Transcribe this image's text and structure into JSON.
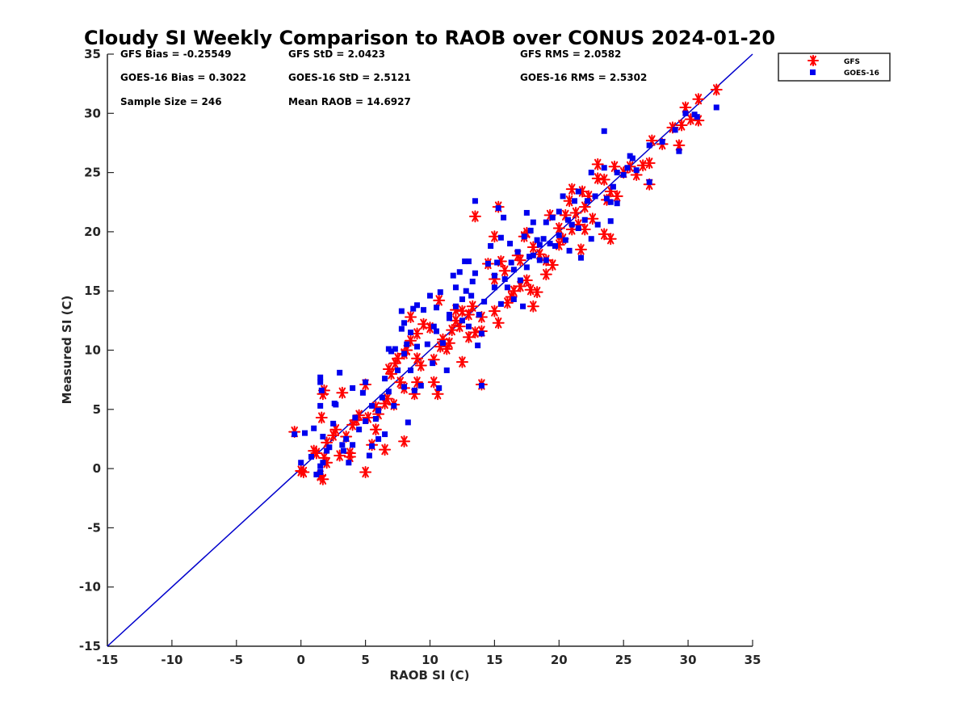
{
  "chart_data": {
    "type": "scatter",
    "title": "Cloudy SI Weekly Comparison to RAOB over CONUS 2024-01-20",
    "xlabel": "RAOB SI (C)",
    "ylabel": "Measured SI (C)",
    "xlim": [
      -15,
      35
    ],
    "ylim": [
      -15,
      35
    ],
    "xticks": [
      -15,
      -10,
      -5,
      0,
      5,
      10,
      15,
      20,
      25,
      30,
      35
    ],
    "yticks": [
      -15,
      -10,
      -5,
      0,
      5,
      10,
      15,
      20,
      25,
      30,
      35
    ],
    "grid": false,
    "legend_position": "outside-top-right",
    "reference_line": {
      "x": [
        -15,
        35
      ],
      "y": [
        -15,
        35
      ],
      "color": "#0000cc"
    },
    "stats": [
      "GFS Bias = -0.25549",
      "GFS StD = 2.0423",
      "GFS RMS = 2.0582",
      "GOES-16 Bias = 0.3022",
      "GOES-16 StD = 2.5121",
      "GOES-16 RMS = 2.5302",
      "Sample Size = 246",
      "Mean RAOB = 14.6927"
    ],
    "series": [
      {
        "name": "GFS",
        "marker": "asterisk",
        "color": "#ff0000",
        "points": [
          [
            -0.5,
            3.1
          ],
          [
            0,
            -0.2
          ],
          [
            0.2,
            -0.3
          ],
          [
            1,
            1.5
          ],
          [
            1.2,
            1.3
          ],
          [
            1.5,
            -0.6
          ],
          [
            1.7,
            -0.9
          ],
          [
            1.7,
            6.3
          ],
          [
            1.8,
            6.6
          ],
          [
            1.6,
            4.3
          ],
          [
            2,
            2.2
          ],
          [
            1.8,
            0.9
          ],
          [
            2,
            0.5
          ],
          [
            2.5,
            2.8
          ],
          [
            2.7,
            3.3
          ],
          [
            3,
            1.1
          ],
          [
            3.2,
            6.4
          ],
          [
            3.5,
            2.7
          ],
          [
            3.8,
            1.3
          ],
          [
            3.8,
            1.0
          ],
          [
            4,
            3.7
          ],
          [
            4.3,
            4.1
          ],
          [
            4.5,
            4.5
          ],
          [
            5,
            7.1
          ],
          [
            5,
            -0.3
          ],
          [
            5.2,
            4.3
          ],
          [
            5.5,
            2.0
          ],
          [
            5.8,
            5.2
          ],
          [
            5.8,
            3.3
          ],
          [
            6,
            4.6
          ],
          [
            6.5,
            1.6
          ],
          [
            6.5,
            5.5
          ],
          [
            6.7,
            5.9
          ],
          [
            6.8,
            8.4
          ],
          [
            7,
            8.0
          ],
          [
            7.2,
            5.4
          ],
          [
            7.3,
            8.9
          ],
          [
            7.5,
            9.3
          ],
          [
            7.7,
            7.3
          ],
          [
            8,
            9.7
          ],
          [
            8,
            6.8
          ],
          [
            8.2,
            10.0
          ],
          [
            8.5,
            10.8
          ],
          [
            8,
            2.3
          ],
          [
            8.5,
            12.8
          ],
          [
            8.8,
            6.3
          ],
          [
            9,
            7.3
          ],
          [
            9,
            9.3
          ],
          [
            9,
            11.4
          ],
          [
            9.3,
            8.7
          ],
          [
            9.5,
            12.2
          ],
          [
            10,
            11.9
          ],
          [
            10.3,
            7.3
          ],
          [
            10.3,
            9.2
          ],
          [
            10.6,
            6.3
          ],
          [
            10.7,
            14.2
          ],
          [
            10.8,
            10.3
          ],
          [
            11,
            10.9
          ],
          [
            11.3,
            10.1
          ],
          [
            11.5,
            10.6
          ],
          [
            11.7,
            11.7
          ],
          [
            12,
            12.5
          ],
          [
            12,
            13.4
          ],
          [
            12.3,
            12.0
          ],
          [
            12.5,
            13.3
          ],
          [
            12.5,
            9.0
          ],
          [
            13,
            11.1
          ],
          [
            13,
            13.0
          ],
          [
            13.3,
            13.7
          ],
          [
            13.5,
            11.5
          ],
          [
            13.5,
            21.3
          ],
          [
            14,
            11.6
          ],
          [
            14,
            7.1
          ],
          [
            14,
            12.8
          ],
          [
            14.5,
            17.3
          ],
          [
            15,
            13.3
          ],
          [
            15,
            16.0
          ],
          [
            15,
            19.6
          ],
          [
            15.3,
            22.1
          ],
          [
            15.3,
            12.3
          ],
          [
            15.5,
            17.5
          ],
          [
            15.8,
            16.7
          ],
          [
            16,
            14.0
          ],
          [
            16.3,
            14.5
          ],
          [
            16.5,
            15.0
          ],
          [
            16.8,
            18.0
          ],
          [
            17,
            17.6
          ],
          [
            17,
            15.4
          ],
          [
            17.3,
            19.6
          ],
          [
            17.5,
            19.9
          ],
          [
            17.5,
            15.9
          ],
          [
            17.8,
            15.1
          ],
          [
            18,
            18.7
          ],
          [
            18,
            13.7
          ],
          [
            18.3,
            14.9
          ],
          [
            18.5,
            18.1
          ],
          [
            19,
            17.6
          ],
          [
            19,
            16.4
          ],
          [
            19.3,
            21.4
          ],
          [
            19.5,
            17.2
          ],
          [
            20,
            20.3
          ],
          [
            20,
            18.9
          ],
          [
            20.3,
            19.4
          ],
          [
            20.5,
            21.4
          ],
          [
            20.8,
            22.6
          ],
          [
            21,
            20.2
          ],
          [
            21,
            23.6
          ],
          [
            21.3,
            21.6
          ],
          [
            21.5,
            20.6
          ],
          [
            21.7,
            18.5
          ],
          [
            21.8,
            23.4
          ],
          [
            22,
            20.2
          ],
          [
            22,
            22.1
          ],
          [
            22.3,
            23.0
          ],
          [
            22.6,
            21.1
          ],
          [
            23,
            25.7
          ],
          [
            23,
            24.5
          ],
          [
            23.5,
            24.4
          ],
          [
            23.5,
            19.8
          ],
          [
            23.7,
            22.7
          ],
          [
            24,
            19.4
          ],
          [
            24,
            23.4
          ],
          [
            24.3,
            25.5
          ],
          [
            24.5,
            23.0
          ],
          [
            25,
            25.0
          ],
          [
            25.5,
            25.5
          ],
          [
            26,
            24.8
          ],
          [
            26.5,
            25.6
          ],
          [
            27,
            25.8
          ],
          [
            27,
            24.0
          ],
          [
            27.2,
            27.7
          ],
          [
            28,
            27.4
          ],
          [
            28.8,
            28.8
          ],
          [
            29.3,
            27.3
          ],
          [
            29.5,
            29.0
          ],
          [
            29.8,
            30.5
          ],
          [
            30.2,
            29.5
          ],
          [
            30.8,
            29.4
          ],
          [
            30.8,
            31.2
          ],
          [
            32.2,
            32.0
          ]
        ]
      },
      {
        "name": "GOES-16",
        "marker": "square",
        "color": "#0000ee",
        "points": [
          [
            -0.5,
            2.9
          ],
          [
            0,
            0.5
          ],
          [
            0.3,
            3.0
          ],
          [
            0.8,
            1.0
          ],
          [
            1,
            3.4
          ],
          [
            1.2,
            -0.5
          ],
          [
            1.5,
            -0.3
          ],
          [
            1.5,
            0.2
          ],
          [
            1.7,
            0.5
          ],
          [
            1.5,
            7.3
          ],
          [
            1.5,
            7.7
          ],
          [
            1.6,
            6.6
          ],
          [
            1.7,
            2.7
          ],
          [
            1.5,
            5.3
          ],
          [
            2,
            1.5
          ],
          [
            2.2,
            1.8
          ],
          [
            2.5,
            3.8
          ],
          [
            2.6,
            5.5
          ],
          [
            2.7,
            5.4
          ],
          [
            3,
            8.1
          ],
          [
            3.2,
            2.0
          ],
          [
            3.3,
            1.5
          ],
          [
            3.5,
            2.5
          ],
          [
            3.7,
            0.5
          ],
          [
            4,
            2.0
          ],
          [
            4,
            6.8
          ],
          [
            4.2,
            4.3
          ],
          [
            4.5,
            3.3
          ],
          [
            4.8,
            6.4
          ],
          [
            5,
            4.0
          ],
          [
            5,
            7.3
          ],
          [
            5.3,
            1.1
          ],
          [
            5.5,
            1.9
          ],
          [
            5.5,
            5.3
          ],
          [
            5.8,
            4.2
          ],
          [
            6,
            4.9
          ],
          [
            6,
            2.5
          ],
          [
            6.3,
            6.0
          ],
          [
            6.5,
            7.6
          ],
          [
            6.5,
            2.9
          ],
          [
            6.8,
            6.5
          ],
          [
            6.8,
            10.1
          ],
          [
            7,
            9.9
          ],
          [
            7.2,
            5.3
          ],
          [
            7.3,
            10.1
          ],
          [
            7.5,
            8.3
          ],
          [
            7.8,
            11.8
          ],
          [
            7.8,
            13.3
          ],
          [
            8,
            9.7
          ],
          [
            8,
            6.9
          ],
          [
            8,
            12.3
          ],
          [
            8.2,
            10.5
          ],
          [
            8.3,
            3.9
          ],
          [
            8.5,
            8.3
          ],
          [
            8.5,
            11.5
          ],
          [
            8.7,
            13.5
          ],
          [
            8.8,
            6.6
          ],
          [
            9,
            10.3
          ],
          [
            9,
            13.8
          ],
          [
            9.3,
            7.0
          ],
          [
            9.5,
            13.4
          ],
          [
            9.8,
            10.5
          ],
          [
            10,
            14.6
          ],
          [
            10.2,
            8.9
          ],
          [
            10.3,
            12.0
          ],
          [
            10.5,
            11.6
          ],
          [
            10.5,
            13.6
          ],
          [
            10.7,
            6.8
          ],
          [
            10.8,
            14.9
          ],
          [
            11,
            10.6
          ],
          [
            11.3,
            8.3
          ],
          [
            11.5,
            12.7
          ],
          [
            11.5,
            13.0
          ],
          [
            11.8,
            16.3
          ],
          [
            12,
            13.7
          ],
          [
            12,
            15.3
          ],
          [
            12.3,
            16.6
          ],
          [
            12.5,
            14.3
          ],
          [
            12.5,
            12.5
          ],
          [
            12.7,
            17.5
          ],
          [
            12.8,
            15.0
          ],
          [
            13,
            17.5
          ],
          [
            13,
            12.0
          ],
          [
            13.2,
            14.6
          ],
          [
            13.3,
            15.8
          ],
          [
            13.5,
            16.5
          ],
          [
            13.5,
            22.6
          ],
          [
            13.7,
            10.4
          ],
          [
            13.8,
            13.0
          ],
          [
            14,
            11.4
          ],
          [
            14,
            7.0
          ],
          [
            14.2,
            14.1
          ],
          [
            14.5,
            17.3
          ],
          [
            14.7,
            18.8
          ],
          [
            15,
            15.3
          ],
          [
            15,
            16.3
          ],
          [
            15.2,
            17.4
          ],
          [
            15.3,
            22.0
          ],
          [
            15.5,
            13.9
          ],
          [
            15.5,
            19.5
          ],
          [
            15.7,
            21.2
          ],
          [
            15.8,
            16.0
          ],
          [
            16,
            15.3
          ],
          [
            16.2,
            19.0
          ],
          [
            16.3,
            17.4
          ],
          [
            16.5,
            14.3
          ],
          [
            16.5,
            16.8
          ],
          [
            16.8,
            18.3
          ],
          [
            17,
            15.9
          ],
          [
            17.2,
            13.7
          ],
          [
            17.3,
            19.6
          ],
          [
            17.5,
            17.0
          ],
          [
            17.5,
            21.6
          ],
          [
            17.7,
            17.9
          ],
          [
            17.8,
            20.1
          ],
          [
            18,
            18.0
          ],
          [
            18,
            20.8
          ],
          [
            18.3,
            19.3
          ],
          [
            18.5,
            18.9
          ],
          [
            18.5,
            17.6
          ],
          [
            18.8,
            19.4
          ],
          [
            19,
            20.8
          ],
          [
            19,
            17.6
          ],
          [
            19.3,
            19.0
          ],
          [
            19.5,
            21.2
          ],
          [
            19.7,
            18.8
          ],
          [
            20,
            19.7
          ],
          [
            20,
            21.7
          ],
          [
            20.3,
            23.0
          ],
          [
            20.5,
            19.3
          ],
          [
            20.7,
            21.0
          ],
          [
            20.8,
            18.4
          ],
          [
            21,
            20.6
          ],
          [
            21.2,
            22.6
          ],
          [
            21.5,
            20.3
          ],
          [
            21.5,
            23.4
          ],
          [
            21.7,
            17.8
          ],
          [
            22,
            21.0
          ],
          [
            22.2,
            22.6
          ],
          [
            22.5,
            19.4
          ],
          [
            22.5,
            25.0
          ],
          [
            22.8,
            23.0
          ],
          [
            23,
            20.6
          ],
          [
            23.5,
            28.5
          ],
          [
            23.5,
            25.4
          ],
          [
            23.7,
            22.8
          ],
          [
            24,
            22.5
          ],
          [
            24,
            20.9
          ],
          [
            24.2,
            23.8
          ],
          [
            24.5,
            25.0
          ],
          [
            24.5,
            22.4
          ],
          [
            25,
            24.8
          ],
          [
            25.3,
            25.4
          ],
          [
            25.5,
            26.4
          ],
          [
            25.7,
            26.2
          ],
          [
            26,
            25.2
          ],
          [
            27,
            24.2
          ],
          [
            27,
            27.3
          ],
          [
            28,
            27.6
          ],
          [
            29,
            28.6
          ],
          [
            29.3,
            26.8
          ],
          [
            29.8,
            30.0
          ],
          [
            30.5,
            29.9
          ],
          [
            30.7,
            29.7
          ],
          [
            32.2,
            30.5
          ]
        ]
      }
    ]
  }
}
